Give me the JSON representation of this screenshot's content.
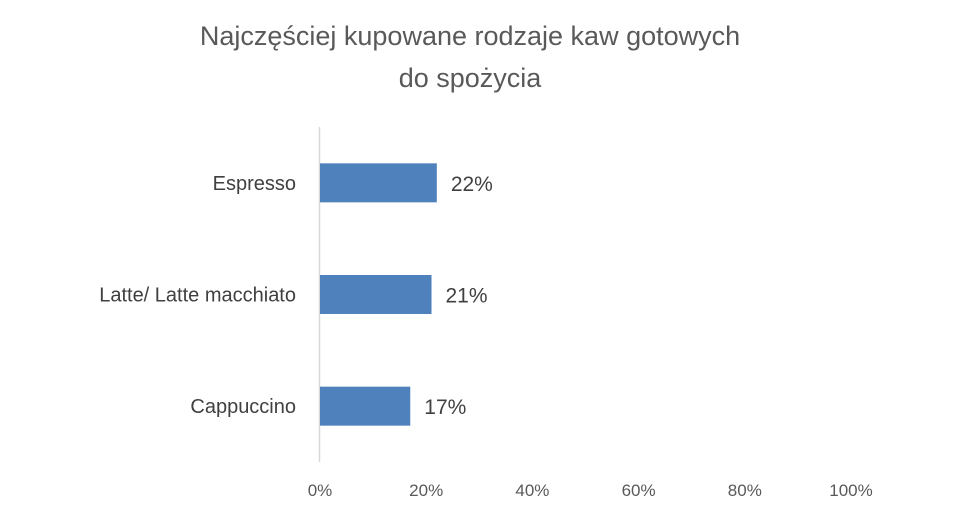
{
  "chart_data": {
    "type": "bar",
    "orientation": "horizontal",
    "title": "Najczęściej kupowane rodzaje kaw gotowych do spożycia",
    "title_lines": [
      "Najczęściej kupowane rodzaje kaw gotowych",
      "do spożycia"
    ],
    "categories": [
      "Espresso",
      "Latte/ Latte macchiato",
      "Cappuccino"
    ],
    "values": [
      22,
      21,
      17
    ],
    "value_labels": [
      "22%",
      "21%",
      "17%"
    ],
    "xlim": [
      0,
      100
    ],
    "x_ticks": [
      0,
      20,
      40,
      60,
      80,
      100
    ],
    "x_tick_labels": [
      "0%",
      "20%",
      "40%",
      "60%",
      "80%",
      "100%"
    ],
    "xlabel": "",
    "ylabel": "",
    "grid": false,
    "legend": "none",
    "bar_color": "#4f81bd",
    "axis_color": "#d9d9d9"
  }
}
